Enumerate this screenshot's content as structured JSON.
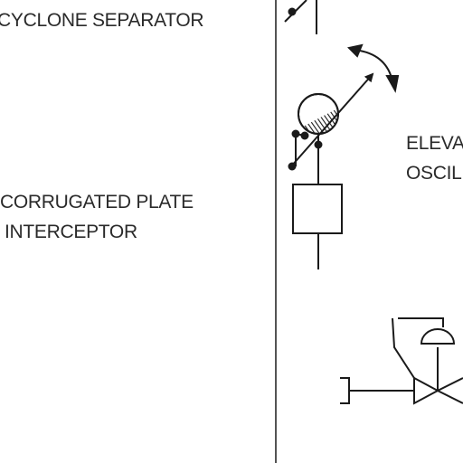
{
  "labels": {
    "cyclone_separator": "CYCLONE SEPARATOR",
    "corrugated_plate_line1": "CORRUGATED PLATE",
    "corrugated_plate_line2": "INTERCEPTOR",
    "elevation_line1": "ELEVA",
    "elevation_line2": "OSCIL"
  },
  "colors": {
    "stroke": "#1a1a1a",
    "text": "#2a2a2a",
    "background": "#ffffff"
  },
  "icons": {
    "top_symbol": "cyclone-separator-symbol",
    "middle_symbol": "corrugated-plate-interceptor-symbol",
    "rotation_arrow": "oscillation-arrow-icon",
    "bottom_symbol": "diaphragm-control-valve-symbol"
  }
}
